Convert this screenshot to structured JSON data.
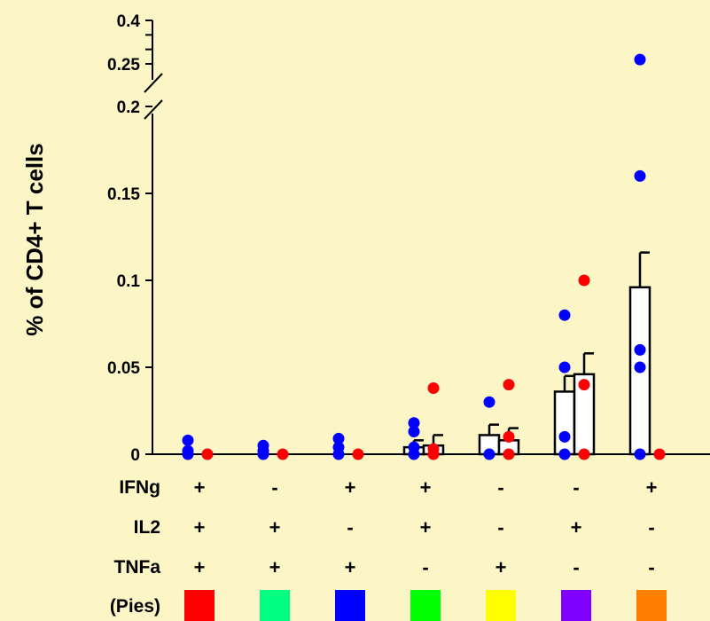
{
  "chart_data": {
    "type": "bar",
    "ylabel": "% of CD4+ T cells",
    "y_scale": "broken",
    "y_break": [
      0.2,
      0.25
    ],
    "ylim": [
      0,
      0.4
    ],
    "y_ticks": [
      {
        "value": 0,
        "label": "0"
      },
      {
        "value": 0.05,
        "label": "0.05"
      },
      {
        "value": 0.1,
        "label": "0.1"
      },
      {
        "value": 0.15,
        "label": "0.15"
      },
      {
        "value": 0.2,
        "label": "0.2"
      },
      {
        "value": 0.25,
        "label": "0.25"
      },
      {
        "value": 0.4,
        "label": "0.4"
      }
    ],
    "y_minor_ticks": [
      0.3,
      0.35
    ],
    "series_colors": {
      "first": "#0000ff",
      "second": "#ff0000"
    },
    "bar_color": "#ffffff",
    "groups": [
      {
        "IFNg": "+",
        "IL2": "+",
        "TNFa": "+",
        "pie_color": "#ff0000",
        "bars": [
          {
            "mean": null,
            "err": null,
            "points": [
              0.008,
              0.002,
              0.0
            ],
            "color": "#0000ff"
          },
          {
            "mean": null,
            "err": null,
            "points": [
              0.0
            ],
            "color": "#ff0000"
          }
        ]
      },
      {
        "IFNg": "-",
        "IL2": "+",
        "TNFa": "+",
        "pie_color": "#00ff80",
        "bars": [
          {
            "mean": null,
            "err": null,
            "points": [
              0.005,
              0.002,
              0.0
            ],
            "color": "#0000ff"
          },
          {
            "mean": null,
            "err": null,
            "points": [
              0.0
            ],
            "color": "#ff0000"
          }
        ]
      },
      {
        "IFNg": "+",
        "IL2": "-",
        "TNFa": "+",
        "pie_color": "#0000ff",
        "bars": [
          {
            "mean": null,
            "err": null,
            "points": [
              0.009,
              0.004,
              0.0
            ],
            "color": "#0000ff"
          },
          {
            "mean": null,
            "err": null,
            "points": [
              0.0
            ],
            "color": "#ff0000"
          }
        ]
      },
      {
        "IFNg": "+",
        "IL2": "+",
        "TNFa": "-",
        "pie_color": "#00ff00",
        "bars": [
          {
            "mean": 0.004,
            "err": 0.004,
            "points": [
              0.018,
              0.013,
              0.004,
              0.0
            ],
            "color": "#0000ff"
          },
          {
            "mean": 0.005,
            "err": 0.006,
            "points": [
              0.038,
              0.003,
              0.0
            ],
            "color": "#ff0000"
          }
        ]
      },
      {
        "IFNg": "-",
        "IL2": "-",
        "TNFa": "+",
        "pie_color": "#ffff00",
        "bars": [
          {
            "mean": 0.011,
            "err": 0.006,
            "points": [
              0.03,
              0.0
            ],
            "color": "#0000ff"
          },
          {
            "mean": 0.008,
            "err": 0.007,
            "points": [
              0.04,
              0.01,
              0.0
            ],
            "color": "#ff0000"
          }
        ]
      },
      {
        "IFNg": "-",
        "IL2": "+",
        "TNFa": "-",
        "pie_color": "#8000ff",
        "bars": [
          {
            "mean": 0.036,
            "err": 0.009,
            "points": [
              0.08,
              0.05,
              0.01,
              0.0
            ],
            "color": "#0000ff"
          },
          {
            "mean": 0.046,
            "err": 0.012,
            "points": [
              0.1,
              0.04,
              0.0
            ],
            "color": "#ff0000"
          }
        ]
      },
      {
        "IFNg": "+",
        "IL2": "-",
        "TNFa": "-",
        "pie_color": "#ff8000",
        "bars": [
          {
            "mean": 0.096,
            "err": 0.02,
            "points": [
              0.265,
              0.16,
              0.06,
              0.05,
              0.0
            ],
            "color": "#0000ff"
          },
          {
            "mean": null,
            "err": null,
            "points": [
              0.0
            ],
            "color": "#ff0000"
          }
        ]
      }
    ]
  },
  "row_labels": {
    "ifng": "IFNg",
    "il2": "IL2",
    "tnfa": "TNFa",
    "pies": "(Pies)"
  }
}
